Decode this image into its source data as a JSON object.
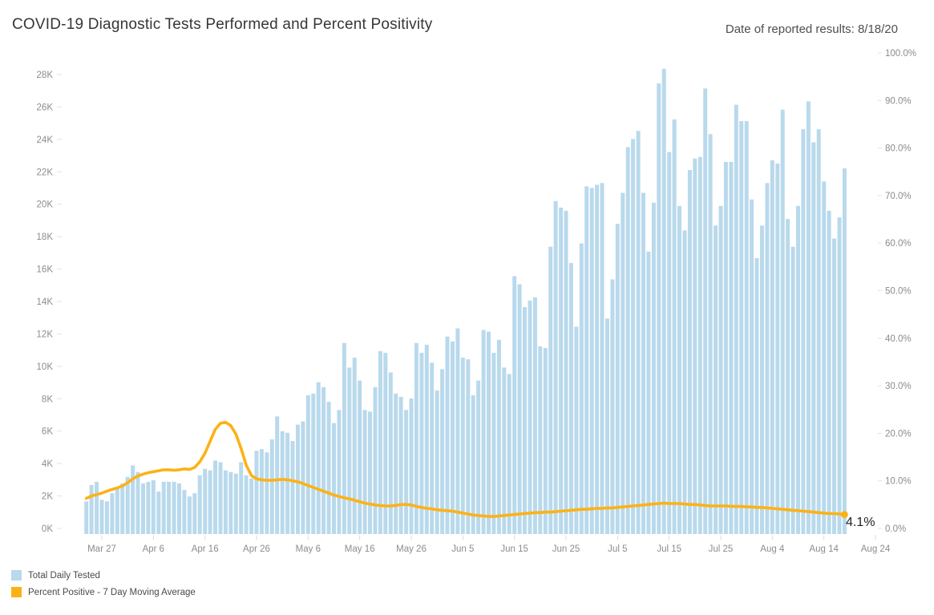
{
  "header": {
    "title": "COVID-19 Diagnostic Tests Performed and Percent Positivity",
    "date_note": "Date of reported results: 8/18/20"
  },
  "annotation": {
    "label": "4.1%"
  },
  "legend": [
    {
      "label": "Total Daily Tested",
      "color": "#b9d9ec"
    },
    {
      "label": "Percent Positive - 7 Day Moving Average",
      "color": "#fcb216"
    }
  ],
  "chart_data": {
    "type": "bar",
    "title": "COVID-19 Diagnostic Tests Performed and Percent Positivity",
    "xlabel": "Date of reported results",
    "categories": [
      "Mar 24",
      "Mar 25",
      "Mar 26",
      "Mar 27",
      "Mar 28",
      "Mar 29",
      "Mar 30",
      "Mar 31",
      "Apr 1",
      "Apr 2",
      "Apr 3",
      "Apr 4",
      "Apr 5",
      "Apr 6",
      "Apr 7",
      "Apr 8",
      "Apr 9",
      "Apr 10",
      "Apr 11",
      "Apr 12",
      "Apr 13",
      "Apr 14",
      "Apr 15",
      "Apr 16",
      "Apr 17",
      "Apr 18",
      "Apr 19",
      "Apr 20",
      "Apr 21",
      "Apr 22",
      "Apr 23",
      "Apr 24",
      "Apr 25",
      "Apr 26",
      "Apr 27",
      "Apr 28",
      "Apr 29",
      "Apr 30",
      "May 1",
      "May 2",
      "May 3",
      "May 4",
      "May 5",
      "May 6",
      "May 7",
      "May 8",
      "May 9",
      "May 10",
      "May 11",
      "May 12",
      "May 13",
      "May 14",
      "May 15",
      "May 16",
      "May 17",
      "May 18",
      "May 19",
      "May 20",
      "May 21",
      "May 22",
      "May 23",
      "May 24",
      "May 25",
      "May 26",
      "May 27",
      "May 28",
      "May 29",
      "May 30",
      "May 31",
      "Jun 1",
      "Jun 2",
      "Jun 3",
      "Jun 4",
      "Jun 5",
      "Jun 6",
      "Jun 7",
      "Jun 8",
      "Jun 9",
      "Jun 10",
      "Jun 11",
      "Jun 12",
      "Jun 13",
      "Jun 14",
      "Jun 15",
      "Jun 16",
      "Jun 17",
      "Jun 18",
      "Jun 19",
      "Jun 20",
      "Jun 21",
      "Jun 22",
      "Jun 23",
      "Jun 24",
      "Jun 25",
      "Jun 26",
      "Jun 27",
      "Jun 28",
      "Jun 29",
      "Jun 30",
      "Jul 1",
      "Jul 2",
      "Jul 3",
      "Jul 4",
      "Jul 5",
      "Jul 6",
      "Jul 7",
      "Jul 8",
      "Jul 9",
      "Jul 10",
      "Jul 11",
      "Jul 12",
      "Jul 13",
      "Jul 14",
      "Jul 15",
      "Jul 16",
      "Jul 17",
      "Jul 18",
      "Jul 19",
      "Jul 20",
      "Jul 21",
      "Jul 22",
      "Jul 23",
      "Jul 24",
      "Jul 25",
      "Jul 26",
      "Jul 27",
      "Jul 28",
      "Jul 29",
      "Jul 30",
      "Jul 31",
      "Aug 1",
      "Aug 2",
      "Aug 3",
      "Aug 4",
      "Aug 5",
      "Aug 6",
      "Aug 7",
      "Aug 8",
      "Aug 9",
      "Aug 10",
      "Aug 11",
      "Aug 12",
      "Aug 13",
      "Aug 14",
      "Aug 15",
      "Aug 16",
      "Aug 17",
      "Aug 18"
    ],
    "series": [
      {
        "name": "Total Daily Tested",
        "type": "bar",
        "axis": "left",
        "unit": "thousands of tests",
        "color": "#b9d9ec",
        "values": [
          2.0,
          3.0,
          3.2,
          2.1,
          2.0,
          2.5,
          2.8,
          3.1,
          3.5,
          4.2,
          3.8,
          3.1,
          3.2,
          3.3,
          2.6,
          3.2,
          3.2,
          3.2,
          3.1,
          2.7,
          2.3,
          2.5,
          3.6,
          4.0,
          3.9,
          4.5,
          4.4,
          3.9,
          3.8,
          3.7,
          4.4,
          3.6,
          3.4,
          5.1,
          5.2,
          5.0,
          5.8,
          7.2,
          6.3,
          6.2,
          5.7,
          6.7,
          6.9,
          8.5,
          8.6,
          9.3,
          9.0,
          8.1,
          6.8,
          7.6,
          11.7,
          10.2,
          10.8,
          9.4,
          7.6,
          7.5,
          9.0,
          11.2,
          11.1,
          9.9,
          8.6,
          8.4,
          7.6,
          8.3,
          11.7,
          11.1,
          11.6,
          10.5,
          8.8,
          10.1,
          12.1,
          11.8,
          12.6,
          10.8,
          10.7,
          8.5,
          9.4,
          12.5,
          12.4,
          11.1,
          11.9,
          10.2,
          9.8,
          15.8,
          15.3,
          13.9,
          14.3,
          14.5,
          11.5,
          11.4,
          17.6,
          20.4,
          20.0,
          19.8,
          16.6,
          12.7,
          17.8,
          21.3,
          21.2,
          21.4,
          21.5,
          13.2,
          15.6,
          19.0,
          20.9,
          23.7,
          24.2,
          24.7,
          20.9,
          17.3,
          20.3,
          27.6,
          28.5,
          23.4,
          25.4,
          20.1,
          18.6,
          22.3,
          23.0,
          23.1,
          27.3,
          24.5,
          18.9,
          20.1,
          22.8,
          22.8,
          26.3,
          25.3,
          25.3,
          20.5,
          16.9,
          18.9,
          21.5,
          22.9,
          22.7,
          26.0,
          19.3,
          17.6,
          20.1,
          24.8,
          26.5,
          24.0,
          24.8,
          21.6,
          19.8,
          18.1,
          19.4,
          22.4
        ]
      },
      {
        "name": "Percent Positive - 7 Day Moving Average",
        "type": "line",
        "axis": "right",
        "unit": "%",
        "color": "#fcb216",
        "values": [
          7.5,
          8.0,
          8.3,
          8.6,
          9.0,
          9.4,
          9.7,
          10.1,
          10.8,
          11.6,
          12.2,
          12.6,
          12.9,
          13.1,
          13.3,
          13.5,
          13.5,
          13.4,
          13.5,
          13.7,
          13.6,
          14.0,
          15.2,
          17.0,
          19.5,
          22.0,
          23.3,
          23.5,
          22.8,
          21.0,
          18.0,
          14.5,
          12.3,
          11.6,
          11.4,
          11.3,
          11.3,
          11.4,
          11.5,
          11.4,
          11.2,
          11.0,
          10.6,
          10.2,
          9.8,
          9.4,
          9.0,
          8.6,
          8.2,
          7.9,
          7.6,
          7.4,
          7.1,
          6.8,
          6.5,
          6.3,
          6.1,
          6.0,
          5.9,
          5.9,
          6.0,
          6.2,
          6.2,
          6.1,
          5.8,
          5.6,
          5.4,
          5.3,
          5.1,
          5.0,
          4.9,
          4.8,
          4.6,
          4.4,
          4.2,
          4.0,
          3.9,
          3.8,
          3.7,
          3.7,
          3.8,
          3.9,
          4.0,
          4.1,
          4.2,
          4.3,
          4.4,
          4.5,
          4.5,
          4.6,
          4.6,
          4.7,
          4.8,
          4.9,
          5.0,
          5.1,
          5.2,
          5.2,
          5.3,
          5.4,
          5.4,
          5.5,
          5.5,
          5.6,
          5.7,
          5.8,
          5.9,
          6.0,
          6.1,
          6.2,
          6.3,
          6.4,
          6.5,
          6.4,
          6.4,
          6.4,
          6.3,
          6.2,
          6.2,
          6.1,
          6.0,
          5.9,
          5.9,
          5.9,
          5.9,
          5.8,
          5.8,
          5.8,
          5.7,
          5.7,
          5.6,
          5.6,
          5.5,
          5.4,
          5.3,
          5.2,
          5.1,
          5.0,
          4.9,
          4.8,
          4.7,
          4.6,
          4.5,
          4.4,
          4.3,
          4.3,
          4.2,
          4.1
        ]
      }
    ],
    "left_axis": {
      "ticks": [
        "0K",
        "2K",
        "4K",
        "6K",
        "8K",
        "10K",
        "12K",
        "14K",
        "16K",
        "18K",
        "20K",
        "22K",
        "24K",
        "26K",
        "28K"
      ],
      "range": [
        0,
        28000
      ]
    },
    "right_axis": {
      "ticks": [
        "0.0%",
        "10.0%",
        "20.0%",
        "30.0%",
        "40.0%",
        "50.0%",
        "60.0%",
        "70.0%",
        "80.0%",
        "90.0%",
        "100.0%"
      ],
      "range": [
        0,
        100
      ]
    },
    "x_axis": {
      "ticks": [
        "Mar 27",
        "Apr 6",
        "Apr 16",
        "Apr 26",
        "May 6",
        "May 16",
        "May 26",
        "Jun 5",
        "Jun 15",
        "Jun 25",
        "Jul 5",
        "Jul 15",
        "Jul 25",
        "Aug 4",
        "Aug 14",
        "Aug 24"
      ]
    },
    "legend_position": "bottom-left",
    "grid": false,
    "last_point_label": "4.1%"
  }
}
